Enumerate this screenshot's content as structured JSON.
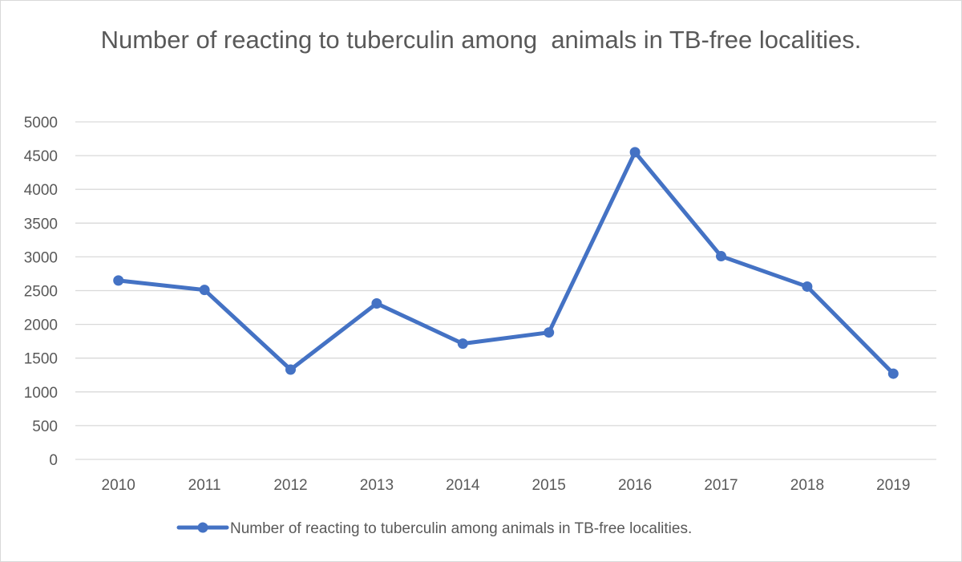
{
  "chart_data": {
    "type": "line",
    "title": "Number of reacting to tuberculin among  animals in TB-free localities.",
    "categories": [
      "2010",
      "2011",
      "2012",
      "2013",
      "2014",
      "2015",
      "2016",
      "2017",
      "2018",
      "2019"
    ],
    "series": [
      {
        "name": "Number of reacting to tuberculin among animals in TB-free localities.",
        "values": [
          2650,
          2510,
          1330,
          2310,
          1715,
          1880,
          4550,
          3010,
          2560,
          1270
        ],
        "color": "#4472c4"
      }
    ],
    "ylim": [
      0,
      5000
    ],
    "yticks": [
      0,
      500,
      1000,
      1500,
      2000,
      2500,
      3000,
      3500,
      4000,
      4500,
      5000
    ],
    "grid": true,
    "legend": "bottom",
    "colors": {
      "gridline": "#d9d9d9",
      "text": "#595959"
    }
  }
}
